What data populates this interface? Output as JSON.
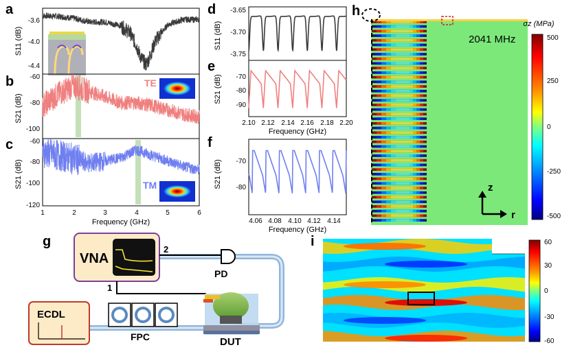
{
  "panels": {
    "a": "a",
    "b": "b",
    "c": "c",
    "d": "d",
    "e": "e",
    "f": "f",
    "g": "g",
    "h": "h",
    "i": "i"
  },
  "left_col": {
    "a_ylabel": "S11 (dB)",
    "a_ticks": [
      "-3.6",
      "-4.0",
      "-4.4"
    ],
    "b_ylabel": "S21 (dB)",
    "b_ticks": [
      "-60",
      "-80",
      "-100"
    ],
    "b_mode": "TE",
    "c_ylabel": "S21 (dB)",
    "c_ticks": [
      "-60",
      "-80",
      "-100",
      "-120"
    ],
    "c_mode": "TM",
    "x_ticks": [
      "1",
      "2",
      "3",
      "4",
      "5",
      "6"
    ],
    "xlabel": "Frequency (GHz)"
  },
  "mid_col": {
    "d_ylabel": "S11 (dB)",
    "d_ticks": [
      "-3.65",
      "-3.70",
      "-3.75"
    ],
    "e_ylabel": "S21 (dB)",
    "e_ticks": [
      "-70",
      "-80",
      "-90"
    ],
    "e_x_ticks": [
      "2.10",
      "2.12",
      "2.14",
      "2.16",
      "2.18",
      "2.20"
    ],
    "e_xlabel": "Frequency (GHz)",
    "f_ylabel": "S21 (dB)",
    "f_ticks": [
      "-70",
      "-80"
    ],
    "f_x_ticks": [
      "4.06",
      "4.08",
      "4.10",
      "4.12",
      "4.14"
    ],
    "f_xlabel": "Frequency (GHz)"
  },
  "sim_h": {
    "freq": "2041 MHz",
    "cbar_title": "σz (MPa)",
    "cbar_ticks": [
      "500",
      "250",
      "0",
      "-250",
      "-500"
    ],
    "axis_z": "z",
    "axis_r": "r"
  },
  "setup_g": {
    "vna": "VNA",
    "port1": "1",
    "port2": "2",
    "pd": "PD",
    "ecdl": "ECDL",
    "fpc": "FPC",
    "dut": "DUT"
  },
  "sim_i": {
    "cbar_ticks": [
      "60",
      "30",
      "0",
      "-30",
      "-60"
    ]
  },
  "colors": {
    "dark": "#3a3a3a",
    "red": "#f07f7f",
    "blue": "#6f7ff0",
    "highlight": "#b5d8a8",
    "vna_fill": "#fdebc8",
    "vna_border": "#7a3f9b",
    "ecdl_border": "#c0392b",
    "fiber": "#8fb6db"
  },
  "chart_data": [
    {
      "type": "line",
      "panel": "a",
      "ylabel": "S11 (dB)",
      "xlabel": "Frequency (GHz)",
      "xlim": [
        1,
        6
      ],
      "ylim": [
        -4.55,
        -3.5
      ],
      "series": [
        {
          "name": "S11",
          "x": [
            1,
            1.5,
            2,
            2.5,
            3,
            3.5,
            3.8,
            4.0,
            4.1,
            4.2,
            4.3,
            4.4,
            4.6,
            5,
            5.5,
            6
          ],
          "values": [
            -3.62,
            -3.63,
            -3.66,
            -3.72,
            -3.72,
            -3.78,
            -3.9,
            -4.1,
            -4.25,
            -4.33,
            -4.4,
            -4.3,
            -4.02,
            -3.76,
            -3.68,
            -3.68
          ]
        }
      ]
    },
    {
      "type": "line",
      "panel": "b",
      "ylabel": "S21 (dB)",
      "xlabel": "Frequency (GHz)",
      "xlim": [
        1,
        6
      ],
      "ylim": [
        -105,
        -60
      ],
      "series": [
        {
          "name": "TE",
          "x": [
            1,
            1.5,
            2,
            2.2,
            2.5,
            3,
            3.5,
            4,
            4.5,
            5,
            5.5,
            6
          ],
          "values": [
            -82,
            -74,
            -68,
            -70,
            -72,
            -76,
            -80,
            -80,
            -82,
            -85,
            -88,
            -90
          ]
        }
      ]
    },
    {
      "type": "line",
      "panel": "c",
      "ylabel": "S21 (dB)",
      "xlabel": "Frequency (GHz)",
      "xlim": [
        1,
        6
      ],
      "ylim": [
        -120,
        -60
      ],
      "series": [
        {
          "name": "TM",
          "x": [
            1,
            1.5,
            2,
            2.5,
            3,
            3.5,
            4,
            4.5,
            5,
            5.5,
            6
          ],
          "values": [
            -72,
            -75,
            -78,
            -82,
            -80,
            -77,
            -70,
            -75,
            -80,
            -85,
            -88
          ]
        }
      ]
    },
    {
      "type": "line",
      "panel": "d",
      "ylabel": "S11 (dB)",
      "xlim": [
        2.1,
        2.2
      ],
      "ylim": [
        -3.78,
        -3.64
      ],
      "series": [
        {
          "name": "S11",
          "period": 0.015,
          "start": 2.1,
          "top": -3.665,
          "dip": -3.755
        }
      ]
    },
    {
      "type": "line",
      "panel": "e",
      "ylabel": "S21 (dB)",
      "xlabel": "Frequency (GHz)",
      "xlim": [
        2.1,
        2.2
      ],
      "ylim": [
        -95,
        -62
      ],
      "series": [
        {
          "name": "S21",
          "period": 0.015,
          "start": 2.1,
          "top": -68,
          "dip": -90
        }
      ]
    },
    {
      "type": "line",
      "panel": "f",
      "ylabel": "S21 (dB)",
      "xlabel": "Frequency (GHz)",
      "xlim": [
        4.05,
        4.15
      ],
      "ylim": [
        -84,
        -64
      ],
      "series": [
        {
          "name": "S21",
          "period": 0.0137,
          "start": 4.054,
          "top": -67,
          "dip": -79
        }
      ]
    }
  ]
}
